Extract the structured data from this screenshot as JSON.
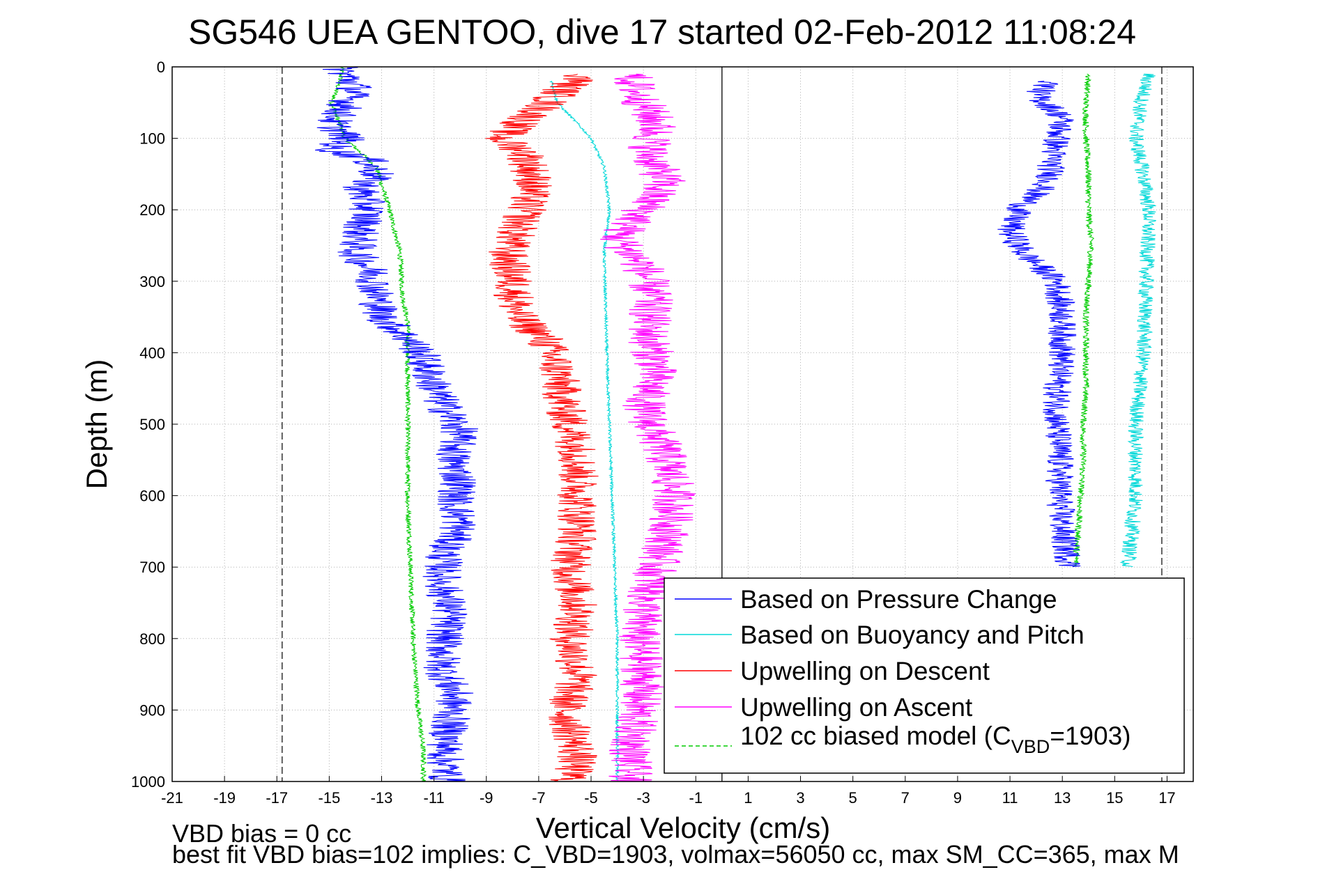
{
  "chart_data": {
    "type": "line",
    "title": "SG546 UEA GENTOO, dive 17 started 02-Feb-2012 11:08:24",
    "xlabel": "Vertical Velocity (cm/s)",
    "ylabel": "Depth (m)",
    "xlim": [
      -21,
      18
    ],
    "ylim": [
      0,
      1000
    ],
    "y_reversed": true,
    "grid": true,
    "xticks": [
      "-21",
      "-19",
      "-17",
      "-15",
      "-13",
      "-11",
      "-9",
      "-7",
      "-5",
      "-3",
      "-1",
      "1",
      "3",
      "5",
      "7",
      "9",
      "11",
      "13",
      "15",
      "17"
    ],
    "yticks": [
      "0",
      "100",
      "200",
      "300",
      "400",
      "500",
      "600",
      "700",
      "800",
      "900",
      "1000"
    ],
    "legend_position": "bottom-right",
    "legend": {
      "pressure": "Based on Pressure Change",
      "buoyancy": "Based on Buoyancy and Pitch",
      "up_descent": "Upwelling on Descent",
      "up_ascent": "Upwelling on Ascent",
      "model_prefix": "102 cc biased model (C",
      "model_sub": "VBD",
      "model_suffix": "=1903)"
    },
    "reference_lines": [
      -16.8,
      0,
      16.8
    ],
    "series": [
      {
        "key": "pressure_descent",
        "color": "#0000ff",
        "depth": [
          0,
          30,
          60,
          80,
          100,
          115,
          130,
          150,
          170,
          200,
          230,
          260,
          290,
          320,
          350,
          380,
          400,
          430,
          470,
          510,
          550,
          580,
          610,
          640,
          680,
          720,
          760,
          800,
          840,
          880,
          920,
          960,
          1000
        ],
        "values": [
          -14.6,
          -14.0,
          -14.5,
          -14.9,
          -14.3,
          -15.0,
          -13.5,
          -13.2,
          -13.8,
          -13.5,
          -13.8,
          -14.0,
          -13.3,
          -13.2,
          -13.0,
          -12.0,
          -11.5,
          -11.2,
          -10.7,
          -10.0,
          -10.3,
          -10.0,
          -10.2,
          -10.0,
          -10.6,
          -10.7,
          -10.4,
          -10.6,
          -10.7,
          -10.2,
          -10.4,
          -10.6,
          -10.5
        ],
        "noise": 0.75
      },
      {
        "key": "pressure_ascent",
        "color": "#0000ff",
        "depth": [
          20,
          40,
          70,
          100,
          130,
          160,
          200,
          230,
          260,
          300,
          350,
          400,
          450,
          500,
          550,
          600,
          650,
          700
        ],
        "values": [
          12.6,
          12.0,
          13.0,
          12.8,
          12.6,
          12.5,
          11.3,
          11.0,
          11.5,
          12.8,
          13.0,
          13.0,
          12.8,
          12.8,
          12.9,
          12.9,
          13.0,
          13.3
        ],
        "noise": 0.55
      },
      {
        "key": "model_descent",
        "color": "#00cc00",
        "depth": [
          0,
          20,
          50,
          100,
          140,
          200,
          260,
          320,
          360,
          420,
          500,
          600,
          700,
          800,
          900,
          960,
          1000
        ],
        "values": [
          -14.5,
          -14.6,
          -14.9,
          -14.4,
          -13.2,
          -12.7,
          -12.3,
          -12.2,
          -12.0,
          -12.0,
          -12.0,
          -12.0,
          -11.9,
          -11.8,
          -11.6,
          -11.4,
          -11.4
        ],
        "noise": 0.1
      },
      {
        "key": "model_ascent",
        "color": "#00cc00",
        "depth": [
          10,
          50,
          100,
          150,
          200,
          250,
          300,
          350,
          400,
          450,
          500,
          550,
          600,
          650,
          700
        ],
        "values": [
          14.0,
          13.9,
          13.9,
          14.0,
          14.0,
          14.1,
          14.0,
          13.9,
          13.9,
          13.9,
          13.8,
          13.8,
          13.7,
          13.6,
          13.5
        ],
        "noise": 0.12
      },
      {
        "key": "buoyancy_descent",
        "color": "#00d8d8",
        "depth": [
          20,
          50,
          80,
          100,
          140,
          200,
          260,
          400,
          600,
          800,
          900,
          1000
        ],
        "values": [
          -6.5,
          -6.3,
          -5.5,
          -5.0,
          -4.5,
          -4.3,
          -4.5,
          -4.4,
          -4.2,
          -4.0,
          -4.0,
          -4.0
        ],
        "noise": 0.06
      },
      {
        "key": "buoyancy_ascent",
        "color": "#00d8d8",
        "depth": [
          10,
          50,
          100,
          150,
          200,
          300,
          400,
          500,
          600,
          700
        ],
        "values": [
          16.3,
          16.0,
          15.8,
          16.1,
          16.3,
          16.2,
          16.1,
          15.8,
          15.8,
          15.5
        ],
        "noise": 0.3
      },
      {
        "key": "up_descent",
        "color": "#ff0000",
        "depth": [
          10,
          30,
          60,
          100,
          120,
          160,
          200,
          260,
          300,
          350,
          380,
          420,
          480,
          540,
          600,
          650,
          700,
          760,
          800,
          850,
          900,
          960,
          1000
        ],
        "values": [
          -5.2,
          -6.0,
          -7.0,
          -8.5,
          -7.5,
          -7.2,
          -7.5,
          -8.2,
          -8.0,
          -7.8,
          -6.8,
          -6.3,
          -6.0,
          -5.5,
          -5.5,
          -5.5,
          -5.8,
          -5.5,
          -5.8,
          -5.5,
          -6.0,
          -5.5,
          -5.8
        ],
        "noise": 0.8
      },
      {
        "key": "up_ascent",
        "color": "#ff00ff",
        "depth": [
          10,
          40,
          80,
          120,
          160,
          200,
          240,
          280,
          320,
          380,
          420,
          480,
          540,
          600,
          650,
          700,
          760,
          800,
          850,
          900,
          960,
          1000
        ],
        "values": [
          -3.5,
          -3.2,
          -2.5,
          -2.8,
          -2.2,
          -3.0,
          -4.0,
          -3.0,
          -2.7,
          -2.8,
          -2.5,
          -3.0,
          -2.2,
          -1.8,
          -2.0,
          -2.5,
          -3.0,
          -3.2,
          -3.0,
          -3.2,
          -3.5,
          -3.5
        ],
        "noise": 0.85
      }
    ]
  },
  "footer": {
    "vbd_bias": "VBD bias = 0 cc",
    "best_fit": "best fit VBD bias=102 implies: C_VBD=1903, volmax=56050 cc, max SM_CC=365, max M"
  }
}
